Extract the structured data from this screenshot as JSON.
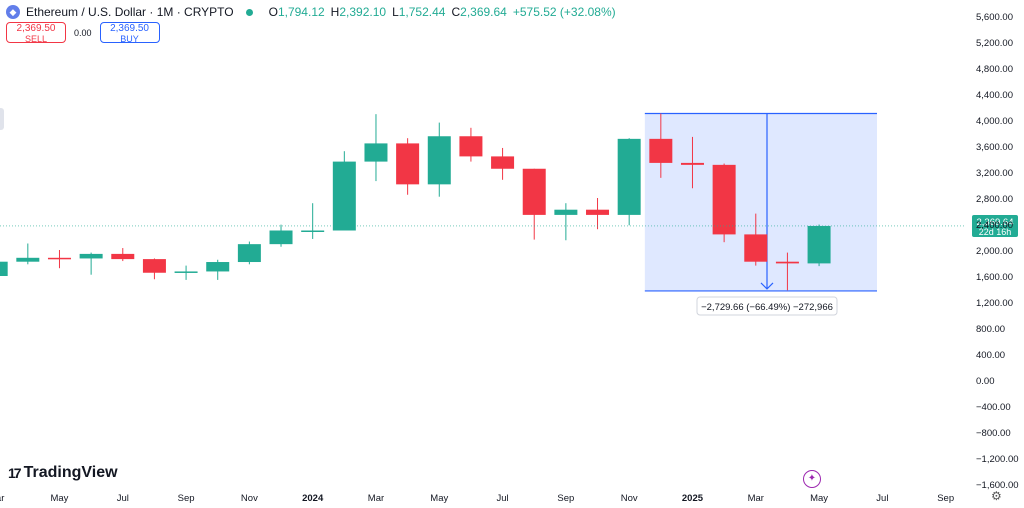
{
  "header": {
    "symbol": "Ethereum / U.S. Dollar · 1M · CRYPTO",
    "ohlc": [
      {
        "k": "O",
        "v": "1,794.12"
      },
      {
        "k": "H",
        "v": "2,392.10"
      },
      {
        "k": "L",
        "v": "1,752.44"
      },
      {
        "k": "C",
        "v": "2,369.64"
      },
      {
        "k": "",
        "v": "+575.52 (+32.08%)"
      }
    ]
  },
  "trade": {
    "sell_price": "2,369.50",
    "sell_label": "SELL",
    "spread": "0.00",
    "buy_price": "2,369.50",
    "buy_label": "BUY"
  },
  "brand": "TradingView",
  "chart_data": {
    "type": "candlestick",
    "up_color": "#22ab94",
    "down_color": "#f23645",
    "ylim": [
      -1700,
      5700
    ],
    "y_ticks": [
      5600,
      5200,
      4800,
      4400,
      4000,
      3600,
      3200,
      2800,
      2400,
      2000,
      1600,
      1200,
      800,
      400,
      0,
      -400,
      -800,
      -1200,
      -1600
    ],
    "y_tick_labels": [
      "5,600.00",
      "5,200.00",
      "4,800.00",
      "4,400.00",
      "4,000.00",
      "3,600.00",
      "3,200.00",
      "2,800.00",
      "2,400.00",
      "2,000.00",
      "1,600.00",
      "1,200.00",
      "800.00",
      "400.00",
      "0.00",
      "−400.00",
      "−800.00",
      "−1,200.00",
      "−1,600.00"
    ],
    "x_ticks": [
      {
        "i": -1,
        "label": "Mar"
      },
      {
        "i": 1,
        "label": "May"
      },
      {
        "i": 3,
        "label": "Jul"
      },
      {
        "i": 5,
        "label": "Sep"
      },
      {
        "i": 7,
        "label": "Nov"
      },
      {
        "i": 9,
        "label": "2024",
        "bold": true
      },
      {
        "i": 11,
        "label": "Mar"
      },
      {
        "i": 13,
        "label": "May"
      },
      {
        "i": 15,
        "label": "Jul"
      },
      {
        "i": 17,
        "label": "Sep"
      },
      {
        "i": 19,
        "label": "Nov"
      },
      {
        "i": 21,
        "label": "2025",
        "bold": true
      },
      {
        "i": 23,
        "label": "Mar"
      },
      {
        "i": 25,
        "label": "May"
      },
      {
        "i": 27,
        "label": "Jul"
      },
      {
        "i": 29,
        "label": "Sep"
      }
    ],
    "candles": [
      {
        "i": -1,
        "o": 1600,
        "h": 1850,
        "l": 1550,
        "c": 1820
      },
      {
        "i": 0,
        "o": 1820,
        "h": 2100,
        "l": 1780,
        "c": 1880
      },
      {
        "i": 1,
        "o": 1880,
        "h": 2000,
        "l": 1720,
        "c": 1870
      },
      {
        "i": 2,
        "o": 1870,
        "h": 1960,
        "l": 1620,
        "c": 1940
      },
      {
        "i": 3,
        "o": 1940,
        "h": 2030,
        "l": 1830,
        "c": 1860
      },
      {
        "i": 4,
        "o": 1860,
        "h": 1870,
        "l": 1550,
        "c": 1650
      },
      {
        "i": 5,
        "o": 1650,
        "h": 1760,
        "l": 1540,
        "c": 1670
      },
      {
        "i": 6,
        "o": 1670,
        "h": 1850,
        "l": 1540,
        "c": 1815
      },
      {
        "i": 7,
        "o": 1815,
        "h": 2130,
        "l": 1780,
        "c": 2090
      },
      {
        "i": 8,
        "o": 2090,
        "h": 2390,
        "l": 2050,
        "c": 2300
      },
      {
        "i": 9,
        "o": 2300,
        "h": 2720,
        "l": 2170,
        "c": 2300
      },
      {
        "i": 10,
        "o": 2300,
        "h": 3520,
        "l": 2300,
        "c": 3360
      },
      {
        "i": 11,
        "o": 3360,
        "h": 4090,
        "l": 3060,
        "c": 3640
      },
      {
        "i": 12,
        "o": 3640,
        "h": 3720,
        "l": 2850,
        "c": 3010
      },
      {
        "i": 13,
        "o": 3010,
        "h": 3960,
        "l": 2820,
        "c": 3750
      },
      {
        "i": 14,
        "o": 3750,
        "h": 3880,
        "l": 3360,
        "c": 3440
      },
      {
        "i": 15,
        "o": 3440,
        "h": 3570,
        "l": 3080,
        "c": 3250
      },
      {
        "i": 16,
        "o": 3250,
        "h": 3250,
        "l": 2160,
        "c": 2540
      },
      {
        "i": 17,
        "o": 2540,
        "h": 2720,
        "l": 2150,
        "c": 2620
      },
      {
        "i": 18,
        "o": 2620,
        "h": 2800,
        "l": 2320,
        "c": 2540
      },
      {
        "i": 19,
        "o": 2540,
        "h": 3720,
        "l": 2380,
        "c": 3710
      },
      {
        "i": 20,
        "o": 3710,
        "h": 4100,
        "l": 3110,
        "c": 3340
      },
      {
        "i": 21,
        "o": 3340,
        "h": 3740,
        "l": 2950,
        "c": 3310
      },
      {
        "i": 22,
        "o": 3310,
        "h": 3330,
        "l": 2120,
        "c": 2240
      },
      {
        "i": 23,
        "o": 2240,
        "h": 2560,
        "l": 1760,
        "c": 1820
      },
      {
        "i": 24,
        "o": 1820,
        "h": 1960,
        "l": 1380,
        "c": 1794
      },
      {
        "i": 25,
        "o": 1794,
        "h": 2392,
        "l": 1752,
        "c": 2370
      }
    ],
    "current_price": {
      "value": 2369.64,
      "label": "2,369.64",
      "countdown": "22d 16h"
    },
    "measure": {
      "i_start": 20,
      "i_end": 26.6,
      "price_top": 4100,
      "price_bottom": 1370,
      "label": "−2,729.66 (−66.49%) −272,966"
    }
  }
}
